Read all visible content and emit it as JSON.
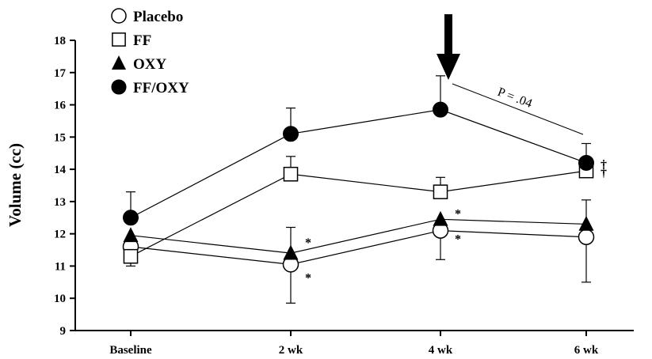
{
  "chart_data": {
    "type": "line",
    "title": "",
    "xlabel": "",
    "ylabel": "Volume (cc)",
    "categories": [
      "Baseline",
      "2 wk",
      "4 wk",
      "6 wk"
    ],
    "ylim": [
      9,
      18
    ],
    "yticks": [
      "9",
      "10",
      "11",
      "12",
      "13",
      "14",
      "15",
      "16",
      "17",
      "18"
    ],
    "grid": false,
    "legend_position": "top-left",
    "series": [
      {
        "name": "Placebo",
        "marker": "circle-open",
        "values": [
          11.6,
          11.05,
          12.1,
          11.9
        ],
        "error_upper": [
          null,
          null,
          null,
          null
        ],
        "error_lower": [
          null,
          9.85,
          11.2,
          10.5
        ],
        "markers_text": [
          null,
          "*",
          "*",
          null
        ]
      },
      {
        "name": "FF",
        "marker": "square-open",
        "values": [
          11.3,
          13.85,
          13.3,
          13.95
        ],
        "error_upper": [
          null,
          14.4,
          13.75,
          null
        ],
        "error_lower": [
          11.0,
          null,
          null,
          null
        ],
        "markers_text": [
          null,
          null,
          null,
          "†"
        ]
      },
      {
        "name": "OXY",
        "marker": "triangle-filled",
        "values": [
          11.95,
          11.4,
          12.45,
          12.3
        ],
        "error_upper": [
          null,
          12.2,
          null,
          13.05
        ],
        "error_lower": [
          null,
          null,
          null,
          null
        ],
        "markers_text": [
          null,
          "*",
          "*",
          null
        ]
      },
      {
        "name": "FF/OXY",
        "marker": "circle-filled",
        "values": [
          12.5,
          15.1,
          15.85,
          14.2
        ],
        "error_upper": [
          13.3,
          15.9,
          16.9,
          14.8
        ],
        "error_lower": [
          null,
          null,
          null,
          null
        ],
        "markers_text": [
          null,
          null,
          null,
          "†"
        ]
      }
    ],
    "annotations": {
      "p_value_label": "P = .04",
      "arrow_category": "4 wk"
    }
  }
}
